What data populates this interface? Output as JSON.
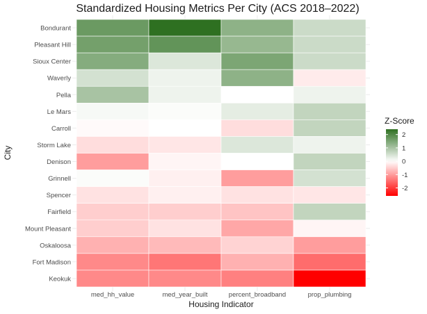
{
  "chart_data": {
    "type": "heatmap",
    "title": "Standardized Housing Metrics Per City (ACS 2018–2022)",
    "xlabel": "Housing Indicator",
    "ylabel": "City",
    "x_categories": [
      "med_hh_value",
      "med_year_built",
      "percent_broadband",
      "prop_plumbing"
    ],
    "y_categories": [
      "Bondurant",
      "Pleasant Hill",
      "Sioux Center",
      "Waverly",
      "Pella",
      "Le Mars",
      "Carroll",
      "Storm Lake",
      "Denison",
      "Grinnell",
      "Spencer",
      "Fairfield",
      "Mount Pleasant",
      "Oskaloosa",
      "Fort Madison",
      "Keokuk"
    ],
    "values": [
      [
        1.7,
        2.4,
        1.3,
        0.6
      ],
      [
        1.6,
        1.8,
        1.2,
        0.6
      ],
      [
        1.4,
        0.4,
        1.5,
        0.6
      ],
      [
        0.5,
        0.2,
        1.3,
        -0.2
      ],
      [
        1.0,
        0.2,
        0.0,
        0.2
      ],
      [
        0.1,
        0.05,
        0.3,
        0.7
      ],
      [
        -0.05,
        0.0,
        -0.35,
        0.7
      ],
      [
        -0.35,
        -0.25,
        0.4,
        0.2
      ],
      [
        -1.0,
        -0.1,
        0.0,
        0.7
      ],
      [
        0.05,
        -0.15,
        -1.0,
        0.5
      ],
      [
        -0.3,
        -0.15,
        -0.3,
        -0.25
      ],
      [
        -0.5,
        -0.5,
        -0.6,
        0.7
      ],
      [
        -0.5,
        -0.3,
        -0.9,
        -0.1
      ],
      [
        -0.8,
        -0.7,
        -0.45,
        -1.0
      ],
      [
        -1.2,
        -1.4,
        -0.8,
        -1.5
      ],
      [
        -1.2,
        -1.2,
        -1.3,
        -2.6
      ]
    ],
    "legend": {
      "title": "Z-Score",
      "ticks": [
        2,
        1,
        0,
        -1,
        -2
      ],
      "range": [
        -2.6,
        2.4
      ],
      "placement": "right",
      "low_color": "#ff0000",
      "mid_color": "#ffffff",
      "high_color": "#2e7021"
    },
    "grid": true
  }
}
